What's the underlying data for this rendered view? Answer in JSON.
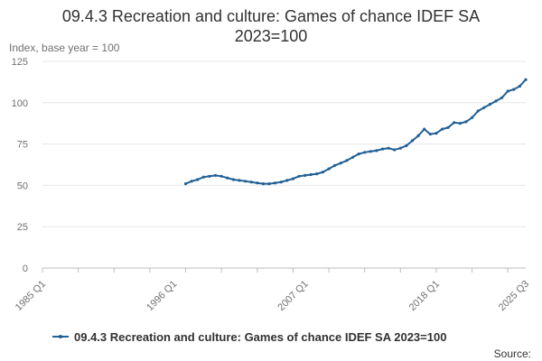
{
  "chart_data": {
    "type": "line",
    "title_line1": "09.4.3 Recreation and culture: Games of chance IDEF SA",
    "title_line2": "2023=100",
    "ylabel": "Index, base year = 100",
    "ylim": [
      0,
      125
    ],
    "yticks": [
      0,
      25,
      50,
      75,
      100,
      125
    ],
    "grid": true,
    "legend": "bottom",
    "x_ticks": [
      "1985 Q1",
      "1996 Q1",
      "2007 Q1",
      "2018 Q1",
      "2025 Q3"
    ],
    "x_start": "1985 Q1",
    "x_end": "2025 Q3",
    "series": [
      {
        "name": "09.4.3 Recreation and culture: Games of chance IDEF SA 2023=100",
        "color": "#206095",
        "points": [
          [
            "1997 Q1",
            51
          ],
          [
            "1997 Q3",
            52.5
          ],
          [
            "1998 Q1",
            53.5
          ],
          [
            "1998 Q3",
            55
          ],
          [
            "1999 Q1",
            55.5
          ],
          [
            "1999 Q3",
            56
          ],
          [
            "2000 Q1",
            55.5
          ],
          [
            "2000 Q3",
            54.5
          ],
          [
            "2001 Q1",
            53.5
          ],
          [
            "2001 Q3",
            53
          ],
          [
            "2002 Q1",
            52.5
          ],
          [
            "2002 Q3",
            52
          ],
          [
            "2003 Q1",
            51.5
          ],
          [
            "2003 Q3",
            51
          ],
          [
            "2004 Q1",
            51
          ],
          [
            "2004 Q3",
            51.5
          ],
          [
            "2005 Q1",
            52
          ],
          [
            "2005 Q3",
            53
          ],
          [
            "2006 Q1",
            54
          ],
          [
            "2006 Q3",
            55.5
          ],
          [
            "2007 Q1",
            56
          ],
          [
            "2007 Q3",
            56.5
          ],
          [
            "2008 Q1",
            57
          ],
          [
            "2008 Q3",
            58
          ],
          [
            "2009 Q1",
            60
          ],
          [
            "2009 Q3",
            62
          ],
          [
            "2010 Q1",
            63.5
          ],
          [
            "2010 Q3",
            65
          ],
          [
            "2011 Q1",
            67
          ],
          [
            "2011 Q3",
            69
          ],
          [
            "2012 Q1",
            70
          ],
          [
            "2012 Q3",
            70.5
          ],
          [
            "2013 Q1",
            71
          ],
          [
            "2013 Q3",
            72
          ],
          [
            "2014 Q1",
            72.5
          ],
          [
            "2014 Q3",
            71.5
          ],
          [
            "2015 Q1",
            72.5
          ],
          [
            "2015 Q3",
            74
          ],
          [
            "2016 Q1",
            77
          ],
          [
            "2016 Q3",
            80
          ],
          [
            "2017 Q1",
            84
          ],
          [
            "2017 Q3",
            81
          ],
          [
            "2018 Q1",
            81.5
          ],
          [
            "2018 Q3",
            84
          ],
          [
            "2019 Q1",
            85
          ],
          [
            "2019 Q3",
            88
          ],
          [
            "2020 Q1",
            87.5
          ],
          [
            "2020 Q3",
            88.5
          ],
          [
            "2021 Q1",
            91
          ],
          [
            "2021 Q3",
            95
          ],
          [
            "2022 Q1",
            97
          ],
          [
            "2022 Q3",
            99
          ],
          [
            "2023 Q1",
            101
          ],
          [
            "2023 Q3",
            103
          ],
          [
            "2024 Q1",
            107
          ],
          [
            "2024 Q3",
            108
          ],
          [
            "2025 Q1",
            110
          ],
          [
            "2025 Q3",
            114
          ]
        ]
      }
    ],
    "source_label": "Source:"
  }
}
